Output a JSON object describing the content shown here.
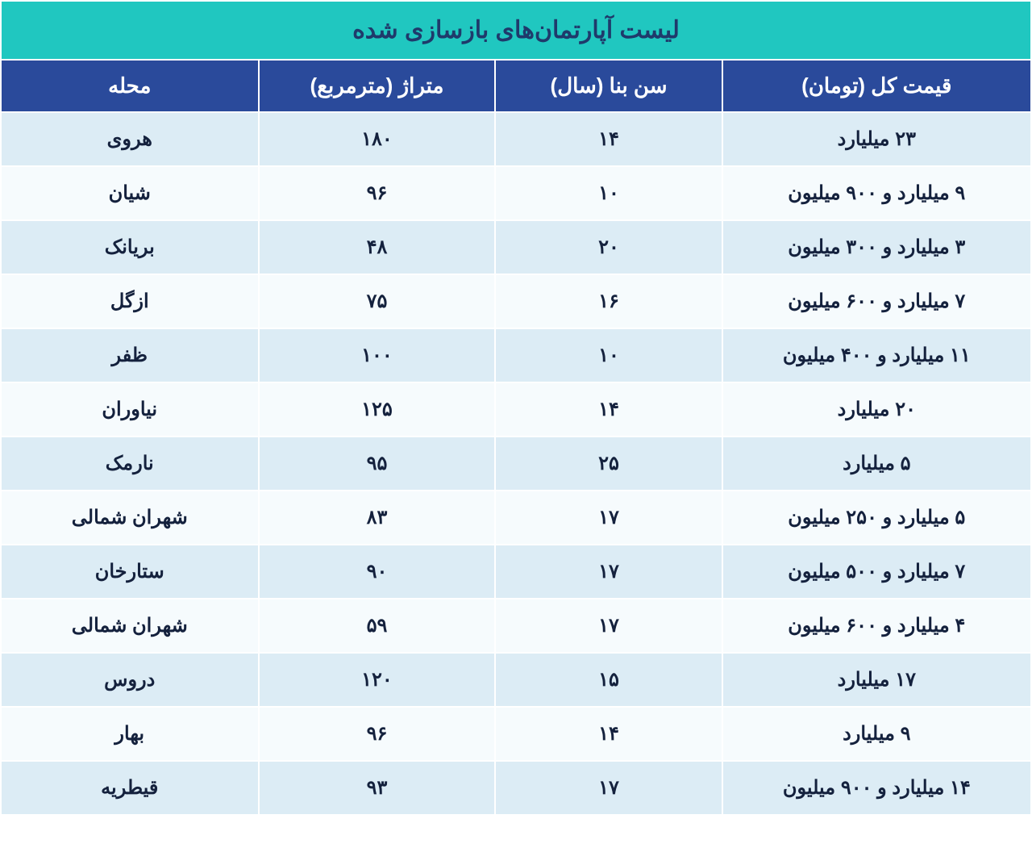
{
  "colors": {
    "title_bg": "#20c7c0",
    "title_color": "#1f3a6b",
    "header_bg": "#2a4a9b",
    "header_color": "#ffffff",
    "row_odd_bg": "#dcecf5",
    "row_even_bg": "#f6fbfd",
    "cell_color": "#14213d",
    "border_color": "#ffffff"
  },
  "title": "لیست آپارتمان‌های بازسازی شده",
  "columns": {
    "price": "قیمت کل (تومان)",
    "age": "سن بنا (سال)",
    "area": "متراژ (مترمربع)",
    "location": "محله"
  },
  "rows": [
    {
      "location": "هروی",
      "area": "۱۸۰",
      "age": "۱۴",
      "price": "۲۳ میلیارد"
    },
    {
      "location": "شیان",
      "area": "۹۶",
      "age": "۱۰",
      "price": "۹ میلیارد و ۹۰۰ میلیون"
    },
    {
      "location": "بریانک",
      "area": "۴۸",
      "age": "۲۰",
      "price": "۳ میلیارد و ۳۰۰ میلیون"
    },
    {
      "location": "ازگل",
      "area": "۷۵",
      "age": "۱۶",
      "price": "۷ میلیارد و ۶۰۰ میلیون"
    },
    {
      "location": "ظفر",
      "area": "۱۰۰",
      "age": "۱۰",
      "price": "۱۱ میلیارد و ۴۰۰ میلیون"
    },
    {
      "location": "نیاوران",
      "area": "۱۲۵",
      "age": "۱۴",
      "price": "۲۰ میلیارد"
    },
    {
      "location": "نارمک",
      "area": "۹۵",
      "age": "۲۵",
      "price": "۵ میلیارد"
    },
    {
      "location": "شهران شمالی",
      "area": "۸۳",
      "age": "۱۷",
      "price": "۵ میلیارد و ۲۵۰ میلیون"
    },
    {
      "location": "ستارخان",
      "area": "۹۰",
      "age": "۱۷",
      "price": "۷ میلیارد و ۵۰۰ میلیون"
    },
    {
      "location": "شهران شمالی",
      "area": "۵۹",
      "age": "۱۷",
      "price": "۴ میلیارد و ۶۰۰ میلیون"
    },
    {
      "location": "دروس",
      "area": "۱۲۰",
      "age": "۱۵",
      "price": "۱۷ میلیارد"
    },
    {
      "location": "بهار",
      "area": "۹۶",
      "age": "۱۴",
      "price": "۹ میلیارد"
    },
    {
      "location": "قیطریه",
      "area": "۹۳",
      "age": "۱۷",
      "price": "۱۴ میلیارد و ۹۰۰ میلیون"
    }
  ]
}
